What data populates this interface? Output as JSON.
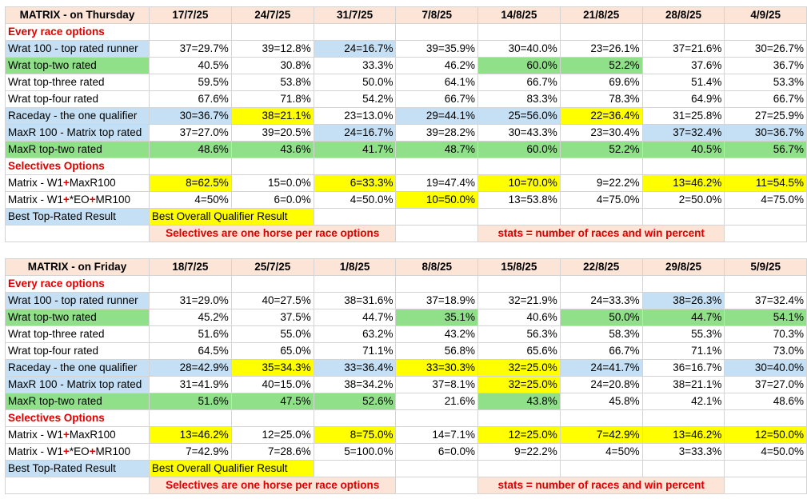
{
  "colors": {
    "blue": "#c5e0f4",
    "green": "#8fe089",
    "yellow": "#ffff00",
    "salmon": "#fce4d6",
    "red": "#e00000"
  },
  "tables": [
    {
      "title": "MATRIX - on Thursday",
      "dates": [
        "17/7/25",
        "24/7/25",
        "31/7/25",
        "7/8/25",
        "14/8/25",
        "21/8/25",
        "28/8/25",
        "4/9/25"
      ],
      "rows": [
        {
          "type": "section",
          "label": "Every race options"
        },
        {
          "type": "data",
          "label": "Wrat 100 - top rated runner",
          "label_color": "blue",
          "values": [
            "37=29.7%",
            "39=12.8%",
            "24=16.7%",
            "39=35.9%",
            "30=40.0%",
            "23=26.1%",
            "37=21.6%",
            "30=26.7%"
          ],
          "colors": [
            "",
            "",
            "blue",
            "",
            "",
            "",
            "",
            ""
          ]
        },
        {
          "type": "data",
          "label": "Wrat top-two rated",
          "label_color": "green",
          "values": [
            "40.5%",
            "30.8%",
            "33.3%",
            "46.2%",
            "60.0%",
            "52.2%",
            "37.6%",
            "36.7%"
          ],
          "colors": [
            "",
            "",
            "",
            "",
            "green",
            "green",
            "",
            ""
          ]
        },
        {
          "type": "data",
          "label": "Wrat top-three rated",
          "label_color": "",
          "values": [
            "59.5%",
            "53.8%",
            "50.0%",
            "64.1%",
            "66.7%",
            "69.6%",
            "51.4%",
            "53.3%"
          ],
          "colors": [
            "",
            "",
            "",
            "",
            "",
            "",
            "",
            ""
          ]
        },
        {
          "type": "data",
          "label": "Wrat top-four rated",
          "label_color": "",
          "values": [
            "67.6%",
            "71.8%",
            "54.2%",
            "66.7%",
            "83.3%",
            "78.3%",
            "64.9%",
            "66.7%"
          ],
          "colors": [
            "",
            "",
            "",
            "",
            "",
            "",
            "",
            ""
          ]
        },
        {
          "type": "data",
          "label": "Raceday - the one qualifier",
          "label_color": "blue",
          "values": [
            "30=36.7%",
            "38=21.1%",
            "23=13.0%",
            "29=44.1%",
            "25=56.0%",
            "22=36.4%",
            "31=25.8%",
            "27=25.9%"
          ],
          "colors": [
            "blue",
            "yellow",
            "",
            "blue",
            "blue",
            "yellow",
            "",
            ""
          ]
        },
        {
          "type": "data",
          "label": "MaxR 100 - Matrix top rated",
          "label_color": "blue",
          "values": [
            "37=27.0%",
            "39=20.5%",
            "24=16.7%",
            "39=28.2%",
            "30=43.3%",
            "23=30.4%",
            "37=32.4%",
            "30=36.7%"
          ],
          "colors": [
            "",
            "",
            "blue",
            "",
            "",
            "",
            "blue",
            "blue"
          ]
        },
        {
          "type": "data",
          "label": "MaxR top-two rated",
          "label_color": "green",
          "values": [
            "48.6%",
            "43.6%",
            "41.7%",
            "48.7%",
            "60.0%",
            "52.2%",
            "40.5%",
            "56.7%"
          ],
          "colors": [
            "green",
            "green",
            "green",
            "green",
            "green",
            "green",
            "green",
            "green"
          ]
        },
        {
          "type": "section",
          "label": "Selectives Options"
        },
        {
          "type": "data",
          "label_parts": [
            "Matrix - W1",
            "+",
            "MaxR100"
          ],
          "label_color": "",
          "values": [
            "8=62.5%",
            "15=0.0%",
            "6=33.3%",
            "19=47.4%",
            "10=70.0%",
            "9=22.2%",
            "13=46.2%",
            "11=54.5%"
          ],
          "colors": [
            "yellow",
            "",
            "yellow",
            "",
            "yellow",
            "",
            "yellow",
            "yellow"
          ]
        },
        {
          "type": "data",
          "label_parts": [
            "Matrix - W1",
            "+",
            "*EO",
            "+",
            "MR100"
          ],
          "label_color": "",
          "values": [
            "4=50%",
            "6=0.0%",
            "4=50.0%",
            "10=50.0%",
            "13=53.8%",
            "4=75.0%",
            "2=50.0%",
            "4=75.0%"
          ],
          "colors": [
            "",
            "",
            "",
            "yellow",
            "",
            "",
            "",
            ""
          ]
        },
        {
          "type": "legend",
          "label": "Best Top-Rated Result",
          "qualifier": "Best Overall Qualifier Result"
        },
        {
          "type": "notes",
          "note1": "Selectives are one horse per race options",
          "note2": "stats = number of races and win percent"
        }
      ]
    },
    {
      "title": "MATRIX - on Friday",
      "dates": [
        "18/7/25",
        "25/7/25",
        "1/8/25",
        "8/8/25",
        "15/8/25",
        "22/8/25",
        "29/8/25",
        "5/9/25"
      ],
      "rows": [
        {
          "type": "section",
          "label": "Every race options"
        },
        {
          "type": "data",
          "label": "Wrat 100 - top rated runner",
          "label_color": "blue",
          "values": [
            "31=29.0%",
            "40=27.5%",
            "38=31.6%",
            "37=18.9%",
            "32=21.9%",
            "24=33.3%",
            "38=26.3%",
            "37=32.4%"
          ],
          "colors": [
            "",
            "",
            "",
            "",
            "",
            "",
            "blue",
            ""
          ]
        },
        {
          "type": "data",
          "label": "Wrat top-two rated",
          "label_color": "green",
          "values": [
            "45.2%",
            "37.5%",
            "44.7%",
            "35.1%",
            "40.6%",
            "50.0%",
            "44.7%",
            "54.1%"
          ],
          "colors": [
            "",
            "",
            "",
            "green",
            "",
            "green",
            "green",
            "green"
          ]
        },
        {
          "type": "data",
          "label": "Wrat top-three rated",
          "label_color": "",
          "values": [
            "51.6%",
            "55.0%",
            "63.2%",
            "43.2%",
            "56.3%",
            "58.3%",
            "55.3%",
            "70.3%"
          ],
          "colors": [
            "",
            "",
            "",
            "",
            "",
            "",
            "",
            ""
          ]
        },
        {
          "type": "data",
          "label": "Wrat top-four rated",
          "label_color": "",
          "values": [
            "64.5%",
            "65.0%",
            "71.1%",
            "56.8%",
            "65.6%",
            "66.7%",
            "71.1%",
            "73.0%"
          ],
          "colors": [
            "",
            "",
            "",
            "",
            "",
            "",
            "",
            ""
          ]
        },
        {
          "type": "data",
          "label": "Raceday - the one qualifier",
          "label_color": "blue",
          "values": [
            "28=42.9%",
            "35=34.3%",
            "33=36.4%",
            "33=30.3%",
            "32=25.0%",
            "24=41.7%",
            "36=16.7%",
            "30=40.0%"
          ],
          "colors": [
            "blue",
            "yellow",
            "blue",
            "yellow",
            "yellow",
            "blue",
            "",
            "blue"
          ]
        },
        {
          "type": "data",
          "label": "MaxR 100 - Matrix top rated",
          "label_color": "blue",
          "values": [
            "31=41.9%",
            "40=15.0%",
            "38=34.2%",
            "37=8.1%",
            "32=25.0%",
            "24=20.8%",
            "38=21.1%",
            "37=27.0%"
          ],
          "colors": [
            "",
            "",
            "",
            "",
            "yellow",
            "",
            "",
            ""
          ]
        },
        {
          "type": "data",
          "label": "MaxR top-two rated",
          "label_color": "green",
          "values": [
            "51.6%",
            "47.5%",
            "52.6%",
            "21.6%",
            "43.8%",
            "45.8%",
            "42.1%",
            "48.6%"
          ],
          "colors": [
            "green",
            "green",
            "green",
            "",
            "green",
            "",
            "",
            ""
          ]
        },
        {
          "type": "section",
          "label": "Selectives Options"
        },
        {
          "type": "data",
          "label_parts": [
            "Matrix - W1",
            "+",
            "MaxR100"
          ],
          "label_color": "",
          "values": [
            "13=46.2%",
            "12=25.0%",
            "8=75.0%",
            "14=7.1%",
            "12=25.0%",
            "7=42.9%",
            "13=46.2%",
            "12=50.0%"
          ],
          "colors": [
            "yellow",
            "",
            "yellow",
            "",
            "yellow",
            "yellow",
            "yellow",
            "yellow"
          ]
        },
        {
          "type": "data",
          "label_parts": [
            "Matrix - W1",
            "+",
            "*EO",
            "+",
            "MR100"
          ],
          "label_color": "",
          "values": [
            "7=42.9%",
            "7=28.6%",
            "5=100.0%",
            "6=0.0%",
            "9=22.2%",
            "4=50%",
            "3=33.3%",
            "4=50.0%"
          ],
          "colors": [
            "",
            "",
            "",
            "",
            "",
            "",
            "",
            ""
          ]
        },
        {
          "type": "legend",
          "label": "Best Top-Rated Result",
          "qualifier": "Best Overall Qualifier Result"
        },
        {
          "type": "notes",
          "note1": "Selectives are one horse per race options",
          "note2": "stats = number of races and win percent"
        }
      ]
    }
  ]
}
